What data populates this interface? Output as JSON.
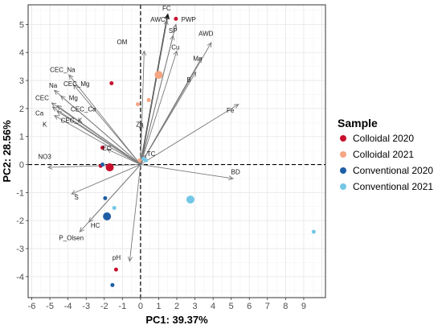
{
  "chart_data": {
    "type": "scatter",
    "subtype": "pca-biplot",
    "xlabel": "PC1: 39.37%",
    "ylabel": "PC2: 28.56%",
    "xlim": [
      -6.2,
      10.2
    ],
    "ylim": [
      -4.75,
      5.7
    ],
    "x_ticks": [
      -6,
      -5,
      -4,
      -3,
      -2,
      -1,
      0,
      1,
      2,
      3,
      4,
      5,
      6,
      7,
      8,
      9
    ],
    "y_ticks": [
      -4,
      -3,
      -2,
      -1,
      0,
      1,
      2,
      3,
      4,
      5
    ],
    "x_tick_labels": [
      "-6",
      "-5",
      "-4",
      "-3",
      "-2",
      "-1",
      "0",
      "1",
      "2",
      "3",
      "4",
      "5",
      "6",
      "7",
      "8",
      "9"
    ],
    "y_tick_labels": [
      "-4",
      "-3",
      "-2",
      "-1",
      "0",
      "1",
      "2",
      "3",
      "4",
      "5"
    ],
    "grid": true,
    "reference_lines": {
      "x": 0,
      "y": 0,
      "style": "dashed"
    },
    "legend": {
      "title": "Sample",
      "placement": "right",
      "entries": [
        {
          "name": "Colloidal 2020",
          "color": "#c8102e"
        },
        {
          "name": "Colloidal 2021",
          "color": "#f4a582"
        },
        {
          "name": "Conventional 2020",
          "color": "#1f5fa6"
        },
        {
          "name": "Conventional 2021",
          "color": "#74c7e6"
        }
      ]
    },
    "series": [
      {
        "name": "Colloidal 2020",
        "color": "#c8102e",
        "points": [
          {
            "x": -1.6,
            "y": 2.9,
            "size": 1
          },
          {
            "x": -2.1,
            "y": 0.6,
            "size": 1
          },
          {
            "x": -2.2,
            "y": -0.05,
            "size": 1
          },
          {
            "x": -1.7,
            "y": -0.1,
            "size": 3
          },
          {
            "x": -1.35,
            "y": -3.75,
            "size": 1
          },
          {
            "x": 1.95,
            "y": 5.2,
            "size": 1
          }
        ]
      },
      {
        "name": "Colloidal 2021",
        "color": "#f4a582",
        "points": [
          {
            "x": 1.0,
            "y": 3.2,
            "size": 3
          },
          {
            "x": 0.45,
            "y": 2.3,
            "size": 1
          },
          {
            "x": -0.15,
            "y": 2.15,
            "size": 1
          },
          {
            "x": -0.05,
            "y": 0.15,
            "size": 1
          }
        ]
      },
      {
        "name": "Conventional 2020",
        "color": "#1f5fa6",
        "points": [
          {
            "x": -2.1,
            "y": 0.0,
            "size": 1
          },
          {
            "x": -1.95,
            "y": -1.2,
            "size": 1
          },
          {
            "x": -1.85,
            "y": -1.85,
            "size": 3
          },
          {
            "x": -1.55,
            "y": -4.3,
            "size": 1
          }
        ]
      },
      {
        "name": "Conventional 2021",
        "color": "#74c7e6",
        "points": [
          {
            "x": 0.15,
            "y": 0.2,
            "size": 1
          },
          {
            "x": 0.3,
            "y": 0.15,
            "size": 1
          },
          {
            "x": -1.45,
            "y": -1.55,
            "size": 1
          },
          {
            "x": 2.75,
            "y": -1.25,
            "size": 3
          },
          {
            "x": 9.55,
            "y": -2.4,
            "size": 1
          }
        ]
      }
    ],
    "loadings": [
      {
        "name": "FC",
        "x": 1.5,
        "y": 5.35
      },
      {
        "name": "AWC",
        "x": 1.45,
        "y": 5.15
      },
      {
        "name": "PWP",
        "x": 1.95,
        "y": 5.0
      },
      {
        "name": "SP",
        "x": 1.8,
        "y": 4.6
      },
      {
        "name": "Cu",
        "x": 2.0,
        "y": 4.05
      },
      {
        "name": "AWD",
        "x": 3.9,
        "y": 4.35
      },
      {
        "name": "Mn",
        "x": 3.35,
        "y": 3.8
      },
      {
        "name": "B",
        "x": 3.05,
        "y": 3.3
      },
      {
        "name": "Fe",
        "x": 5.4,
        "y": 2.15
      },
      {
        "name": "OM",
        "x": 0.2,
        "y": 4.05
      },
      {
        "name": "CEC_Na",
        "x": -3.95,
        "y": 3.2
      },
      {
        "name": "CEC_Mg",
        "x": -3.7,
        "y": 2.85
      },
      {
        "name": "Na",
        "x": -4.75,
        "y": 2.65
      },
      {
        "name": "Mg",
        "x": -4.4,
        "y": 2.45
      },
      {
        "name": "CEC",
        "x": -4.9,
        "y": 2.2
      },
      {
        "name": "CEC_Ca",
        "x": -4.6,
        "y": 2.1
      },
      {
        "name": "Ca",
        "x": -4.85,
        "y": 2.05
      },
      {
        "name": "CEC_K",
        "x": -4.6,
        "y": 1.9
      },
      {
        "name": "K",
        "x": -4.75,
        "y": 1.75
      },
      {
        "name": "Zn",
        "x": 0.05,
        "y": 1.45
      },
      {
        "name": "EC",
        "x": -1.85,
        "y": 0.55
      },
      {
        "name": "TC",
        "x": 0.3,
        "y": 0.35
      },
      {
        "name": "NO3",
        "x": -5.1,
        "y": -0.1
      },
      {
        "name": "BD",
        "x": 5.1,
        "y": -0.5
      },
      {
        "name": "S",
        "x": -3.8,
        "y": -1.05
      },
      {
        "name": "HC",
        "x": -2.85,
        "y": -2.05
      },
      {
        "name": "P_Olsen",
        "x": -3.35,
        "y": -2.4
      },
      {
        "name": "pH",
        "x": -0.6,
        "y": -3.45
      }
    ],
    "loading_label_pos": {
      "FC": [
        1.2,
        5.5
      ],
      "AWC": [
        0.55,
        5.1
      ],
      "PWP": [
        2.25,
        5.1
      ],
      "SP": [
        1.55,
        4.7
      ],
      "Cu": [
        1.7,
        4.1
      ],
      "AWD": [
        3.2,
        4.6
      ],
      "Mn": [
        2.9,
        3.7
      ],
      "B": [
        2.55,
        2.95
      ],
      "Fe": [
        4.75,
        1.85
      ],
      "OM": [
        -1.3,
        4.3
      ],
      "CEC_Na": [
        -5.0,
        3.3
      ],
      "CEC_Mg": [
        -4.25,
        2.8
      ],
      "Na": [
        -5.05,
        2.75
      ],
      "Mg": [
        -3.95,
        2.3
      ],
      "CEC": [
        -5.8,
        2.3
      ],
      "CEC_Ca": [
        -3.85,
        1.9
      ],
      "Ca": [
        -5.8,
        1.75
      ],
      "CEC_K": [
        -4.4,
        1.5
      ],
      "K": [
        -5.4,
        1.35
      ],
      "Zn": [
        -0.25,
        1.35
      ],
      "EC": [
        -2.1,
        0.5
      ],
      "TC": [
        0.35,
        0.3
      ],
      "NO3": [
        -5.65,
        0.2
      ],
      "BD": [
        5.0,
        -0.35
      ],
      "S": [
        -3.65,
        -1.25
      ],
      "HC": [
        -2.75,
        -2.25
      ],
      "P_Olsen": [
        -4.5,
        -2.7
      ],
      "pH": [
        -1.55,
        -3.4
      ]
    },
    "highlighted_loadings": [
      "FC"
    ]
  }
}
